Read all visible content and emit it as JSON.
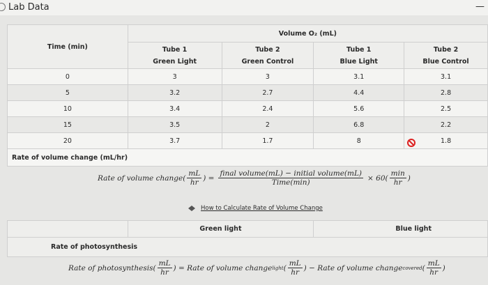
{
  "header": {
    "title": "Lab Data"
  },
  "table": {
    "group_header": "Volume O₂ (mL)",
    "time_header": "Time (min)",
    "columns": [
      {
        "name": "Tube 1",
        "condition": "Green Light"
      },
      {
        "name": "Tube 2",
        "condition": "Green Control"
      },
      {
        "name": "Tube 1",
        "condition": "Blue Light"
      },
      {
        "name": "Tube 2",
        "condition": "Blue Control"
      }
    ],
    "rows": [
      [
        "0",
        "3",
        "3",
        "3.1",
        "3.1"
      ],
      [
        "5",
        "3.2",
        "2.7",
        "4.4",
        "2.8"
      ],
      [
        "10",
        "3.4",
        "2.4",
        "5.6",
        "2.5"
      ],
      [
        "15",
        "3.5",
        "2",
        "6.8",
        "2.2"
      ],
      [
        "20",
        "3.7",
        "1.7",
        "8",
        "1.8"
      ]
    ],
    "rate_label": "Rate of volume change (mL/hr)"
  },
  "formula_1": {
    "lhs": "Rate of volume change(",
    "unit_num": "mL",
    "unit_den": "hr",
    "eq": ") =",
    "num": "final volume(mL) − initial volume(mL)",
    "den": "Time(min)",
    "mult": "× 60(",
    "conv_num": "min",
    "conv_den": "hr",
    "close": ")"
  },
  "link": {
    "text": "How to Calculate Rate of Volume Change"
  },
  "table_2": {
    "columns": [
      "Green light",
      "Blue light"
    ],
    "row_label": "Rate of photosynthesis"
  },
  "formula_2": {
    "lhs": "Rate of photosynthesis(",
    "unit_num": "mL",
    "unit_den": "hr",
    "eq": ") = Rate of volume change",
    "sub_1": "light",
    "open_1": "(",
    "close_1": ") − Rate of volume change",
    "sub_2": "covered",
    "open_2": "(",
    "close_2": ")"
  }
}
